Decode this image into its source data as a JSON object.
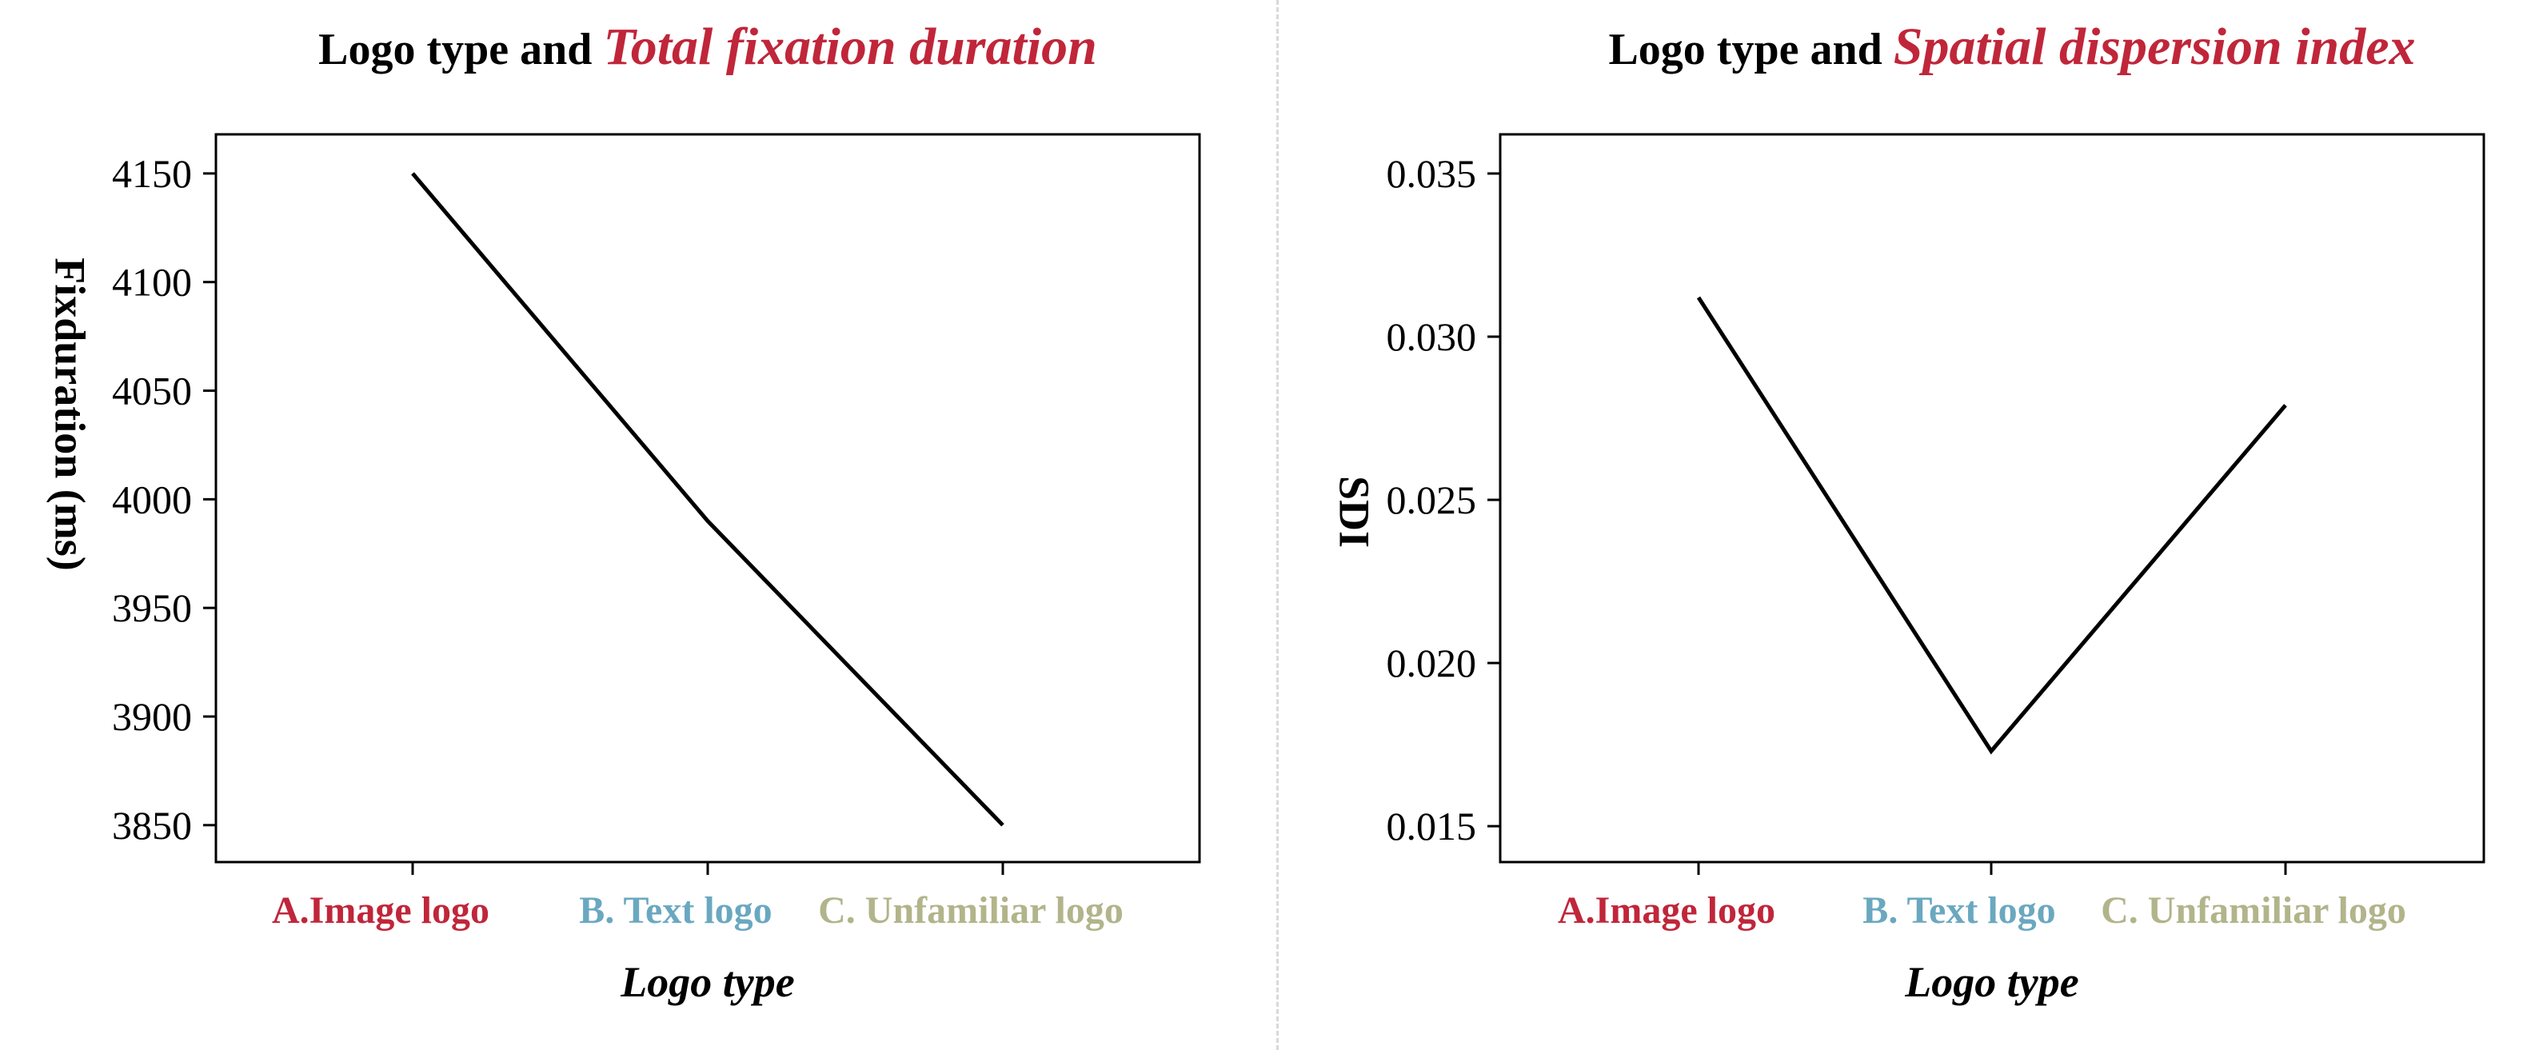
{
  "colors": {
    "accent_red": "#c0263a",
    "category_colors": [
      "#c0263a",
      "#6aa8c0",
      "#b2b48a"
    ],
    "line": "#000000",
    "divider": "#d9d9d9"
  },
  "chart_data": [
    {
      "type": "line",
      "title_prefix": "Logo type and ",
      "title_highlight": "Total fixation duration",
      "xlabel": "Logo type",
      "ylabel": "Fixduration (ms)",
      "categories": [
        "A.Image logo",
        "B. Text logo",
        "C. Unfamiliar logo"
      ],
      "values": [
        4150,
        3990,
        3850
      ],
      "yticks": [
        "3850",
        "3900",
        "3950",
        "4000",
        "4050",
        "4100",
        "4150"
      ],
      "ylim": [
        3833,
        4168
      ],
      "grid": false
    },
    {
      "type": "line",
      "title_prefix": "Logo type and ",
      "title_highlight": "Spatial dispersion index",
      "xlabel": "Logo type",
      "ylabel": "SDI",
      "categories": [
        "A.Image logo",
        "B. Text logo",
        "C. Unfamiliar logo"
      ],
      "values": [
        0.0312,
        0.0173,
        0.0279
      ],
      "yticks": [
        "0.015",
        "0.020",
        "0.025",
        "0.030",
        "0.035"
      ],
      "ylim": [
        0.0139,
        0.0362
      ],
      "grid": false
    }
  ]
}
